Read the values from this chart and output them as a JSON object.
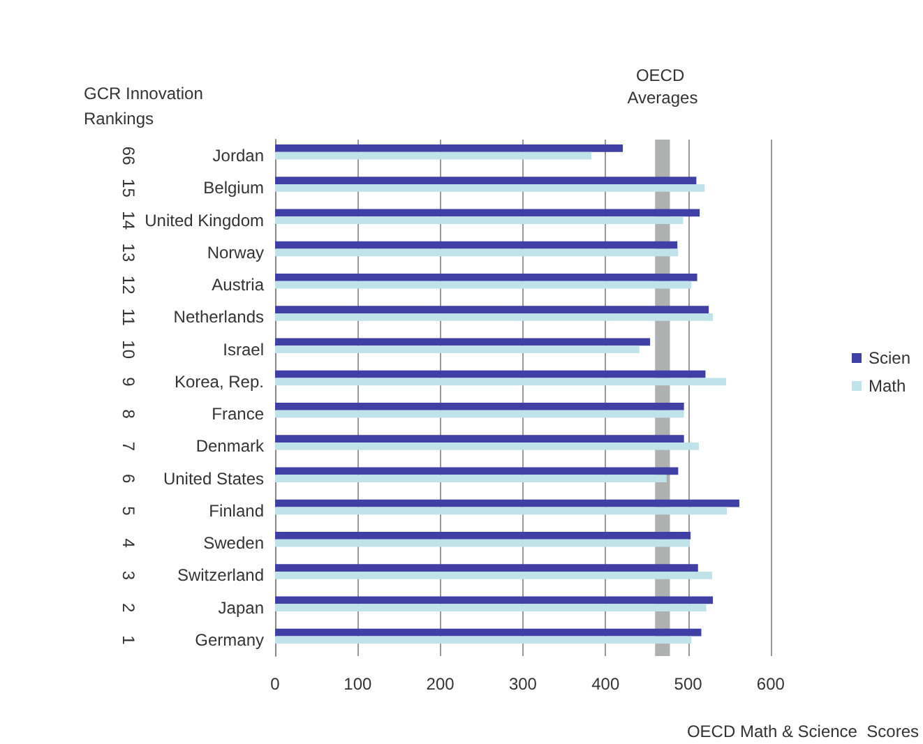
{
  "chart_data": {
    "type": "bar",
    "orientation": "horizontal",
    "categories": [
      "Jordan",
      "Belgium",
      "United Kingdom",
      "Norway",
      "Austria",
      "Netherlands",
      "Israel",
      "Korea, Rep.",
      "France",
      "Denmark",
      "United States",
      "Finland",
      "Sweden",
      "Switzerland",
      "Japan",
      "Germany"
    ],
    "series": [
      {
        "name": "Scien",
        "color": "#3f3fa6",
        "values": [
          421,
          510,
          514,
          487,
          511,
          525,
          454,
          521,
          495,
          495,
          488,
          562,
          503,
          512,
          530,
          516
        ]
      },
      {
        "name": "Math",
        "color": "#bfe3e8",
        "values": [
          383,
          520,
          494,
          488,
          504,
          530,
          441,
          546,
          495,
          513,
          474,
          547,
          502,
          529,
          522,
          504
        ]
      }
    ],
    "xlabel": "OECD Math & Science  Scores",
    "xlim": [
      0,
      600
    ],
    "xticks": [
      0,
      100,
      200,
      300,
      400,
      500,
      600
    ],
    "bands": [
      {
        "axis": "x",
        "from": 460,
        "to": 478,
        "label": "OECD Averages",
        "color": "#6e7070"
      }
    ],
    "annotations": [
      "GCR Innovation Rankings",
      "66",
      "15",
      "14",
      "13",
      "12",
      "11",
      "10",
      "9",
      "8",
      "7",
      "6",
      "5",
      "4",
      "3",
      "2",
      "1"
    ],
    "grid": "x",
    "legend": "right"
  }
}
